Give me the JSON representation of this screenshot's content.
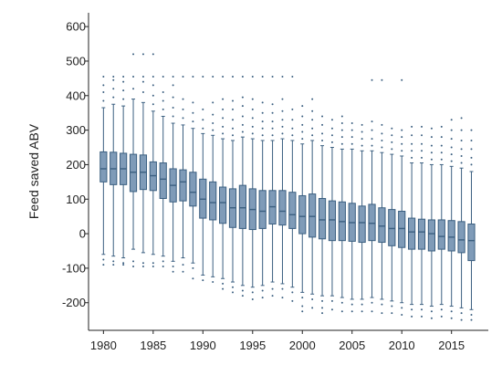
{
  "chart_data": {
    "type": "box",
    "title": "",
    "xlabel": "",
    "ylabel": "Feed saved ABV",
    "ylim": [
      -280,
      640
    ],
    "xlim": [
      1978.5,
      2018.7
    ],
    "yticks": [
      -200,
      -100,
      0,
      100,
      200,
      300,
      400,
      500,
      600
    ],
    "xticks": [
      1980,
      1985,
      1990,
      1995,
      2000,
      2005,
      2010,
      2015
    ],
    "grid": false,
    "legend": "none",
    "box_fill": "#7f9bb8",
    "box_stroke": "#3b5f80",
    "outlier_color": "#3b5f80",
    "boxes": [
      {
        "x": 1980,
        "q1": 150,
        "median": 188,
        "q3": 237,
        "low": -60,
        "high": 365,
        "out_low": [
          -90,
          -75
        ],
        "out_high": [
          385,
          410,
          430,
          455
        ]
      },
      {
        "x": 1981,
        "q1": 142,
        "median": 188,
        "q3": 236,
        "low": -65,
        "high": 375,
        "out_low": [
          -90,
          -80
        ],
        "out_high": [
          395,
          420,
          445,
          455
        ]
      },
      {
        "x": 1982,
        "q1": 142,
        "median": 188,
        "q3": 233,
        "low": -70,
        "high": 370,
        "out_low": [
          -90,
          -85
        ],
        "out_high": [
          390,
          415,
          440,
          455
        ]
      },
      {
        "x": 1983,
        "q1": 122,
        "median": 178,
        "q3": 230,
        "low": -45,
        "high": 390,
        "out_low": [
          -80,
          -95
        ],
        "out_high": [
          420,
          455,
          520
        ]
      },
      {
        "x": 1984,
        "q1": 128,
        "median": 178,
        "q3": 228,
        "low": -55,
        "high": 380,
        "out_low": [
          -85,
          -95
        ],
        "out_high": [
          410,
          440,
          455,
          520
        ]
      },
      {
        "x": 1985,
        "q1": 125,
        "median": 168,
        "q3": 208,
        "low": -60,
        "high": 355,
        "out_low": [
          -85,
          -95
        ],
        "out_high": [
          375,
          400,
          430,
          455,
          520
        ]
      },
      {
        "x": 1986,
        "q1": 102,
        "median": 158,
        "q3": 205,
        "low": -65,
        "high": 340,
        "out_low": [
          -80,
          -95
        ],
        "out_high": [
          360,
          385,
          410,
          455
        ]
      },
      {
        "x": 1987,
        "q1": 92,
        "median": 140,
        "q3": 188,
        "low": -80,
        "high": 320,
        "out_low": [
          -95,
          -110
        ],
        "out_high": [
          340,
          365,
          395,
          430,
          455
        ]
      },
      {
        "x": 1988,
        "q1": 95,
        "median": 150,
        "q3": 185,
        "low": -70,
        "high": 315,
        "out_low": [
          -90,
          -110
        ],
        "out_high": [
          335,
          360,
          390,
          455
        ]
      },
      {
        "x": 1989,
        "q1": 80,
        "median": 120,
        "q3": 178,
        "low": -85,
        "high": 305,
        "out_low": [
          -100,
          -130
        ],
        "out_high": [
          325,
          350,
          380,
          455
        ]
      },
      {
        "x": 1990,
        "q1": 45,
        "median": 100,
        "q3": 158,
        "low": -120,
        "high": 290,
        "out_low": [
          -135
        ],
        "out_high": [
          305,
          330,
          360,
          455
        ]
      },
      {
        "x": 1991,
        "q1": 40,
        "median": 90,
        "q3": 150,
        "low": -125,
        "high": 285,
        "out_low": [
          -140
        ],
        "out_high": [
          300,
          320,
          345,
          380,
          455
        ]
      },
      {
        "x": 1992,
        "q1": 30,
        "median": 90,
        "q3": 135,
        "low": -130,
        "high": 275,
        "out_low": [
          -145,
          -160
        ],
        "out_high": [
          290,
          310,
          335,
          360,
          390,
          455
        ]
      },
      {
        "x": 1993,
        "q1": 18,
        "median": 75,
        "q3": 130,
        "low": -140,
        "high": 270,
        "out_low": [
          -155,
          -170
        ],
        "out_high": [
          285,
          305,
          330,
          360,
          385,
          455
        ]
      },
      {
        "x": 1994,
        "q1": 15,
        "median": 75,
        "q3": 140,
        "low": -150,
        "high": 280,
        "out_low": [
          -165,
          -180
        ],
        "out_high": [
          295,
          315,
          340,
          370,
          395,
          455
        ]
      },
      {
        "x": 1995,
        "q1": 12,
        "median": 70,
        "q3": 130,
        "low": -155,
        "high": 275,
        "out_low": [
          -170,
          -190
        ],
        "out_high": [
          290,
          310,
          335,
          360,
          390,
          455
        ]
      },
      {
        "x": 1996,
        "q1": 15,
        "median": 65,
        "q3": 125,
        "low": -150,
        "high": 270,
        "out_low": [
          -165,
          -185
        ],
        "out_high": [
          285,
          305,
          325,
          350,
          380,
          455
        ]
      },
      {
        "x": 1997,
        "q1": 28,
        "median": 78,
        "q3": 125,
        "low": -140,
        "high": 270,
        "out_low": [
          -160,
          -180
        ],
        "out_high": [
          285,
          305,
          325,
          350,
          375,
          455
        ]
      },
      {
        "x": 1998,
        "q1": 25,
        "median": 65,
        "q3": 125,
        "low": -145,
        "high": 275,
        "out_low": [
          -160,
          -185
        ],
        "out_high": [
          290,
          310,
          330,
          355,
          390,
          455
        ]
      },
      {
        "x": 1999,
        "q1": 15,
        "median": 55,
        "q3": 120,
        "low": -155,
        "high": 270,
        "out_low": [
          -170,
          -195
        ],
        "out_high": [
          285,
          305,
          330,
          360,
          455
        ]
      },
      {
        "x": 2000,
        "q1": 0,
        "median": 50,
        "q3": 110,
        "low": -170,
        "high": 260,
        "out_low": [
          -185,
          -210,
          -225
        ],
        "out_high": [
          275,
          295,
          315,
          340,
          370
        ]
      },
      {
        "x": 2001,
        "q1": -10,
        "median": 50,
        "q3": 115,
        "low": -175,
        "high": 270,
        "out_low": [
          -190,
          -215
        ],
        "out_high": [
          285,
          305,
          330,
          355,
          390
        ]
      },
      {
        "x": 2002,
        "q1": -15,
        "median": 40,
        "q3": 102,
        "low": -180,
        "high": 255,
        "out_low": [
          -195,
          -215,
          -230
        ],
        "out_high": [
          270,
          290,
          315,
          340
        ]
      },
      {
        "x": 2003,
        "q1": -20,
        "median": 40,
        "q3": 95,
        "low": -180,
        "high": 250,
        "out_low": [
          -195,
          -220
        ],
        "out_high": [
          265,
          285,
          305,
          330
        ]
      },
      {
        "x": 2004,
        "q1": -20,
        "median": 35,
        "q3": 92,
        "low": -185,
        "high": 245,
        "out_low": [
          -200,
          -225
        ],
        "out_high": [
          260,
          280,
          300,
          320,
          340
        ]
      },
      {
        "x": 2005,
        "q1": -22,
        "median": 32,
        "q3": 88,
        "low": -190,
        "high": 245,
        "out_low": [
          -205,
          -225
        ],
        "out_high": [
          260,
          280,
          300,
          320
        ]
      },
      {
        "x": 2006,
        "q1": -25,
        "median": 32,
        "q3": 80,
        "low": -190,
        "high": 240,
        "out_low": [
          -205,
          -225
        ],
        "out_high": [
          255,
          275,
          295,
          315
        ]
      },
      {
        "x": 2007,
        "q1": -20,
        "median": 30,
        "q3": 85,
        "low": -185,
        "high": 240,
        "out_low": [
          -200,
          -225
        ],
        "out_high": [
          255,
          275,
          300,
          325,
          445
        ]
      },
      {
        "x": 2008,
        "q1": -25,
        "median": 22,
        "q3": 75,
        "low": -190,
        "high": 235,
        "out_low": [
          -205,
          -230
        ],
        "out_high": [
          250,
          270,
          290,
          315,
          445
        ]
      },
      {
        "x": 2009,
        "q1": -35,
        "median": 15,
        "q3": 70,
        "low": -195,
        "high": 230,
        "out_low": [
          -210,
          -230
        ],
        "out_high": [
          245,
          265,
          285,
          305
        ]
      },
      {
        "x": 2010,
        "q1": -40,
        "median": 15,
        "q3": 65,
        "low": -200,
        "high": 225,
        "out_low": [
          -215,
          -235
        ],
        "out_high": [
          240,
          260,
          280,
          300,
          445
        ]
      },
      {
        "x": 2011,
        "q1": -45,
        "median": 5,
        "q3": 45,
        "low": -205,
        "high": 205,
        "out_low": [
          -220,
          -240
        ],
        "out_high": [
          220,
          240,
          260,
          285,
          310
        ]
      },
      {
        "x": 2012,
        "q1": -45,
        "median": 5,
        "q3": 42,
        "low": -205,
        "high": 205,
        "out_low": [
          -220,
          -240
        ],
        "out_high": [
          220,
          240,
          260,
          285,
          310
        ]
      },
      {
        "x": 2013,
        "q1": -50,
        "median": 0,
        "q3": 40,
        "low": -210,
        "high": 200,
        "out_low": [
          -225,
          -245
        ],
        "out_high": [
          215,
          235,
          255,
          280,
          305
        ]
      },
      {
        "x": 2014,
        "q1": -45,
        "median": -8,
        "q3": 40,
        "low": -205,
        "high": 200,
        "out_low": [
          -220,
          -240
        ],
        "out_high": [
          215,
          235,
          255,
          280,
          310
        ]
      },
      {
        "x": 2015,
        "q1": -50,
        "median": -10,
        "q3": 38,
        "low": -210,
        "high": 195,
        "out_low": [
          -225,
          -245
        ],
        "out_high": [
          210,
          230,
          250,
          275,
          300,
          330
        ]
      },
      {
        "x": 2016,
        "q1": -55,
        "median": -18,
        "q3": 35,
        "low": -215,
        "high": 190,
        "out_low": [
          -230,
          -250
        ],
        "out_high": [
          205,
          225,
          245,
          270,
          300,
          335
        ]
      },
      {
        "x": 2017,
        "q1": -78,
        "median": -20,
        "q3": 28,
        "low": -220,
        "high": 180,
        "out_low": [
          -235,
          -250
        ],
        "out_high": [
          200,
          220,
          245,
          270,
          300
        ]
      }
    ]
  }
}
